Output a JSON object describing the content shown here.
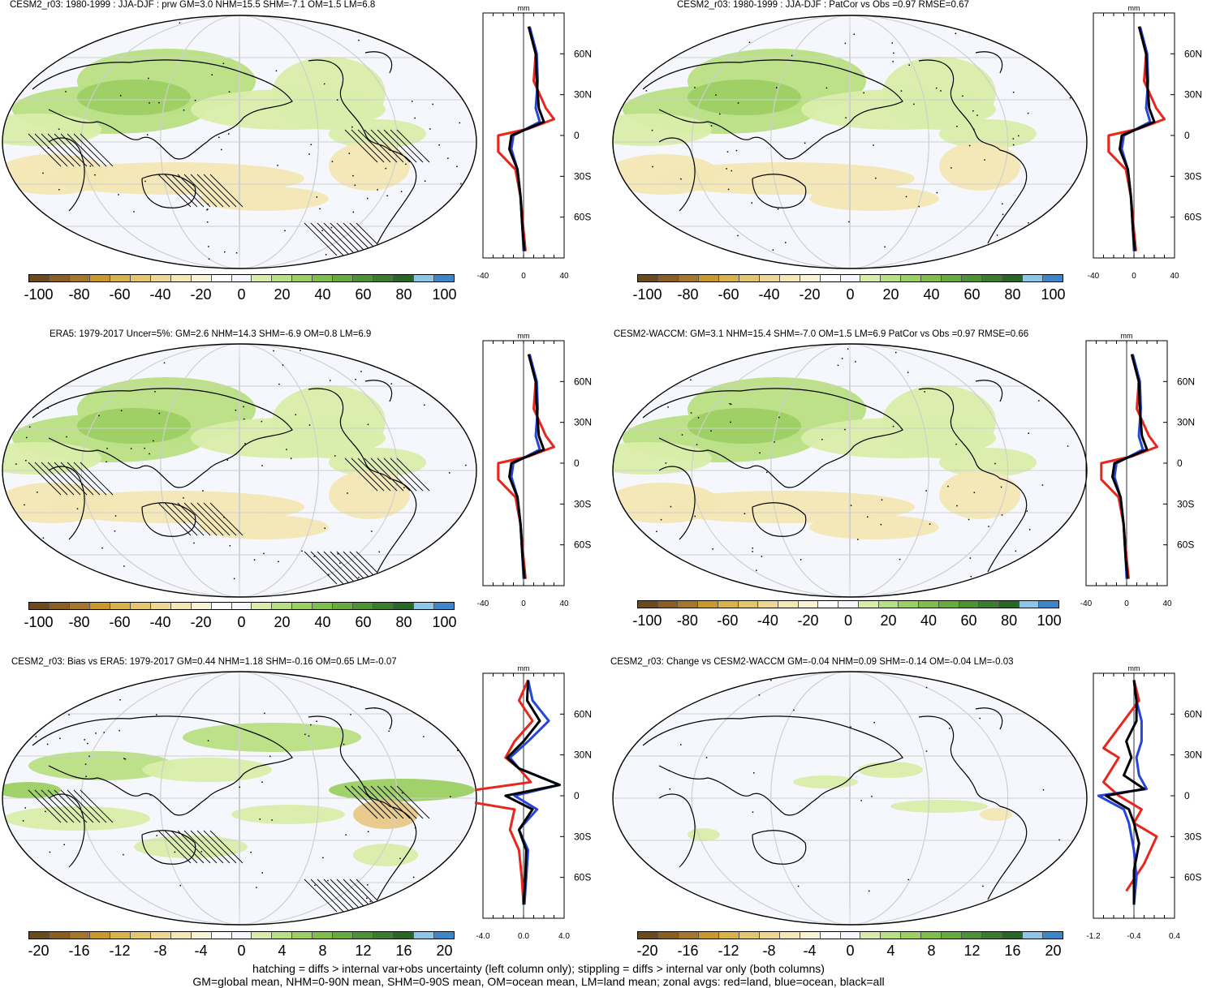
{
  "panels": [
    {
      "title": "CESM2_r03: 1980-1999 : JJA-DJF : prw GM=3.0 NHM=15.5 SHM=-7.1 OM=1.5 LM=6.8"
    },
    {
      "title": "CESM2_r03: 1980-1999 : JJA-DJF : PatCor vs Obs =0.97 RMSE=0.67"
    },
    {
      "title": "ERA5: 1979-2017 Uncer=5%: GM=2.6 NHM=14.3 SHM=-6.9 OM=0.8 LM=6.9"
    },
    {
      "title": "CESM2-WACCM: GM=3.1 NHM=15.4 SHM=-7.0 OM=1.5 LM=6.9 PatCor vs Obs =0.97 RMSE=0.66"
    },
    {
      "title": "CESM2_r03: Bias vs ERA5: 1979-2017 GM=0.44 NHM=1.18 SHM=-0.16 OM=0.65 LM=-0.07"
    },
    {
      "title": "CESM2_r03: Change vs CESM2-WACCM GM=-0.04 NHM=0.09 SHM=-0.14 OM=-0.04 LM=-0.03"
    }
  ],
  "zonal": {
    "unit": "mm",
    "lat_labels": [
      "60N",
      "30N",
      "0",
      "30S",
      "60S"
    ],
    "xticks_main": [
      "-40",
      "0",
      "40"
    ],
    "xticks_bias": [
      "-4.0",
      "0.0",
      "4.0"
    ],
    "xticks_change": [
      "-1.2",
      "-0.4",
      "0.4"
    ]
  },
  "colorbar": {
    "colors": [
      "#6b4a1e",
      "#8a5f24",
      "#a5772e",
      "#c9992f",
      "#d8b24c",
      "#e2c770",
      "#ecd894",
      "#f3e7b5",
      "#f8f2d6",
      "#ffffff",
      "#f5f7fc",
      "#d9edaa",
      "#b8df83",
      "#9ccf63",
      "#80bd4d",
      "#66aa40",
      "#4e9236",
      "#3c7c2f",
      "#2a6626",
      "#8ec6ea",
      "#3d87c8"
    ],
    "labels_main": [
      "-100",
      "-80",
      "-60",
      "-40",
      "-20",
      "0",
      "20",
      "40",
      "60",
      "80",
      "100"
    ],
    "labels_diff": [
      "-20",
      "-16",
      "-12",
      "-8",
      "-4",
      "0",
      "4",
      "8",
      "12",
      "16",
      "20"
    ]
  },
  "legend_series": {
    "land": "#e8261d",
    "ocean": "#2646d9",
    "all": "#000000"
  },
  "footer": {
    "line1": "hatching = diffs > internal var+obs uncertainty (left column only); stippling = diffs > internal var only (both columns)",
    "line2": "GM=global mean, NHM=0-90N mean, SHM=0-90S mean, OM=ocean mean, LM=land mean; zonal avgs: red=land, blue=ocean, black=all"
  }
}
